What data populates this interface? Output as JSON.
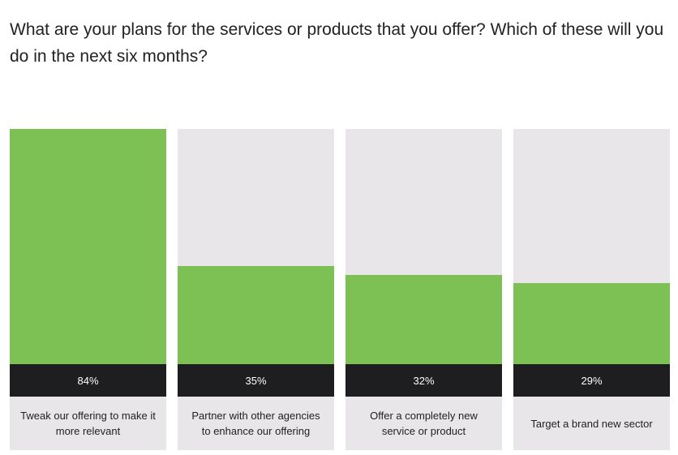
{
  "title": "What are your plans for the services or products that you offer? Which of these will you do in the next six months?",
  "colors": {
    "fill": "#7dc155",
    "track": "#e8e6e8",
    "value_band": "#1e1d1f",
    "label_band": "#e8e6e8"
  },
  "chart_data": {
    "type": "bar",
    "title": "What are your plans for the services or products that you offer? Which of these will you do in the next six months?",
    "categories": [
      "Tweak our offering to make it more relevant",
      "Partner with other agencies to enhance our offering",
      "Offer a completely new service or product",
      "Target a brand new sector"
    ],
    "values": [
      84,
      35,
      32,
      29
    ],
    "value_labels": [
      "84%",
      "35%",
      "32%",
      "29%"
    ],
    "ylim": [
      0,
      84
    ],
    "grid": false,
    "legend": "none"
  }
}
